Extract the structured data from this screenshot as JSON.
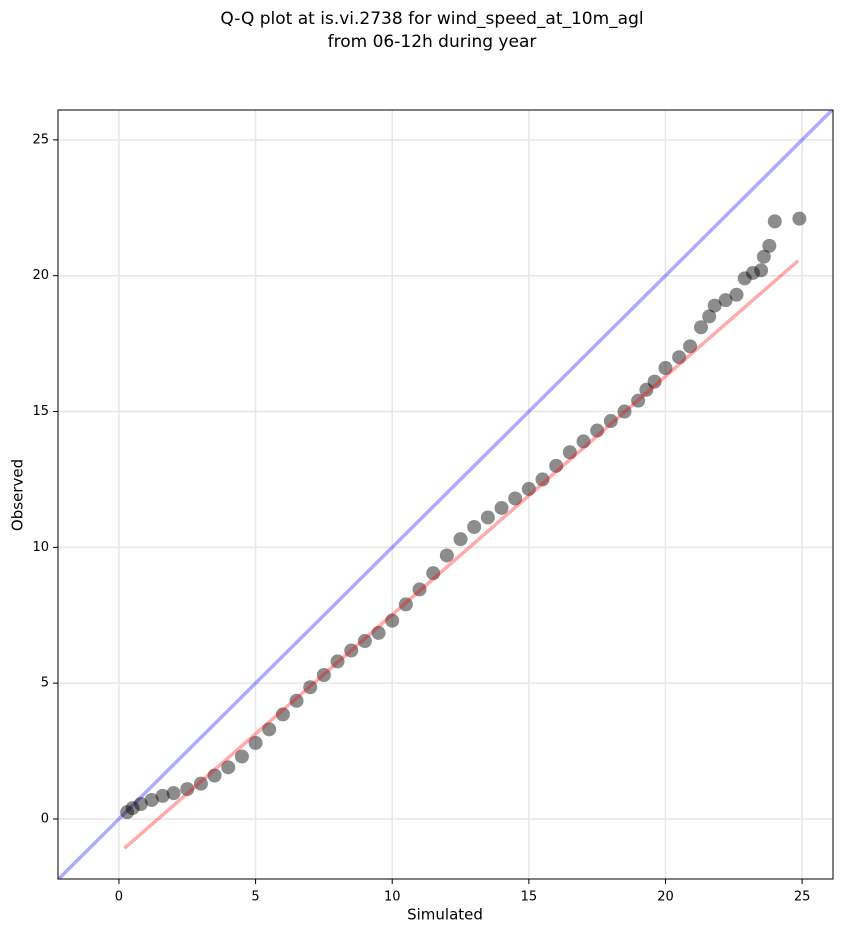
{
  "chart_data": {
    "type": "scatter",
    "title": [
      "Q-Q plot at is.vi.2738 for wind_speed_at_10m_agl",
      "from 06-12h during year"
    ],
    "xlabel": "Simulated",
    "ylabel": "Observed",
    "xlim": [
      -2.23,
      26.13
    ],
    "ylim": [
      -2.21,
      26.1
    ],
    "xticks": [
      0,
      5,
      10,
      15,
      20,
      25
    ],
    "yticks": [
      0,
      5,
      10,
      15,
      20,
      25
    ],
    "grid": true,
    "series": [
      {
        "color": "#000000",
        "alpha": 0.45,
        "x": [
          0.3,
          0.5,
          0.8,
          1.2,
          1.6,
          2.0,
          2.5,
          3.0,
          3.5,
          4.0,
          4.5,
          5.0,
          5.5,
          6.0,
          6.5,
          7.0,
          7.5,
          8.0,
          8.5,
          9.0,
          9.5,
          10.0,
          10.5,
          11.0,
          11.5,
          12.0,
          12.5,
          13.0,
          13.5,
          14.0,
          14.5,
          15.0,
          15.5,
          16.0,
          16.5,
          17.0,
          17.5,
          18.0,
          18.5,
          19.0,
          19.3,
          19.6,
          20.0,
          20.5,
          20.9,
          21.3,
          21.6,
          21.8,
          22.2,
          22.6,
          22.9,
          23.2,
          23.5,
          23.6,
          23.8,
          24.0,
          24.9
        ],
        "values": [
          0.25,
          0.4,
          0.55,
          0.7,
          0.85,
          0.95,
          1.1,
          1.3,
          1.6,
          1.9,
          2.3,
          2.8,
          3.3,
          3.85,
          4.35,
          4.85,
          5.3,
          5.8,
          6.2,
          6.55,
          6.85,
          7.3,
          7.9,
          8.45,
          9.05,
          9.7,
          10.3,
          10.75,
          11.1,
          11.45,
          11.8,
          12.15,
          12.5,
          13.0,
          13.5,
          13.9,
          14.3,
          14.65,
          15.0,
          15.4,
          15.8,
          16.1,
          16.6,
          17.0,
          17.4,
          18.1,
          18.5,
          18.9,
          19.1,
          19.3,
          19.9,
          20.1,
          20.2,
          20.7,
          21.1,
          22.0,
          22.1
        ]
      }
    ],
    "identity_line": {
      "color": "#0000ff",
      "alpha": 0.33
    },
    "fit_line": {
      "x": [
        0.2,
        24.85
      ],
      "values": [
        -1.08,
        20.55
      ],
      "color": "#ff0000",
      "alpha": 0.33
    }
  }
}
